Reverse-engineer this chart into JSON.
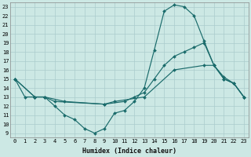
{
  "background_color": "#cce8e4",
  "grid_color": "#aacccc",
  "line_color": "#1a6b6b",
  "marker_color": "#1a6b6b",
  "xlabel": "Humidex (Indice chaleur)",
  "xlim": [
    -0.5,
    23.5
  ],
  "ylim": [
    8.5,
    23.5
  ],
  "xticks": [
    0,
    1,
    2,
    3,
    4,
    5,
    6,
    7,
    8,
    9,
    10,
    11,
    12,
    13,
    14,
    15,
    16,
    17,
    18,
    19,
    20,
    21,
    22,
    23
  ],
  "yticks": [
    9,
    10,
    11,
    12,
    13,
    14,
    15,
    16,
    17,
    18,
    19,
    20,
    21,
    22,
    23
  ],
  "curves": [
    {
      "x": [
        0,
        1,
        2,
        3,
        4,
        5,
        6,
        7,
        8,
        9,
        10,
        11,
        12,
        13,
        14,
        15,
        16,
        17,
        18,
        19,
        20,
        21,
        22,
        23
      ],
      "y": [
        15,
        13,
        13,
        13,
        12,
        11,
        10.5,
        9.5,
        9,
        9.5,
        11.2,
        11.5,
        12.5,
        14,
        18.2,
        22.5,
        23.2,
        23,
        22,
        19.2,
        16.5,
        15,
        14.5,
        13
      ]
    },
    {
      "x": [
        0,
        2,
        3,
        5,
        9,
        11,
        12,
        13,
        14,
        15,
        16,
        17,
        18,
        19,
        20,
        21,
        22,
        23
      ],
      "y": [
        15,
        13,
        13,
        12.5,
        12.2,
        12.5,
        13,
        13.5,
        15,
        16.5,
        17.5,
        18,
        18.5,
        19,
        16.5,
        15,
        14.5,
        13
      ]
    },
    {
      "x": [
        0,
        2,
        3,
        4,
        9,
        10,
        13,
        16,
        19,
        20,
        21,
        22,
        23
      ],
      "y": [
        15,
        13,
        13,
        12.5,
        12.2,
        12.5,
        13,
        16,
        16.5,
        16.5,
        15.2,
        14.5,
        13
      ]
    }
  ]
}
